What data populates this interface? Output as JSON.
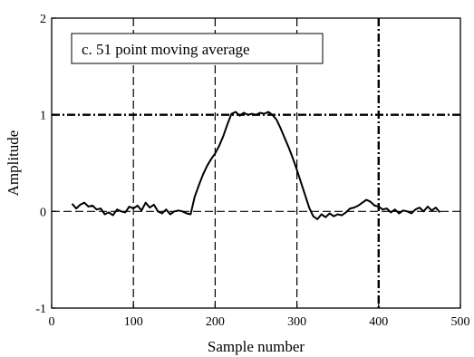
{
  "chart_data": {
    "type": "line",
    "title": "c.  51 point moving average",
    "xlabel": "Sample number",
    "ylabel": "Amplitude",
    "xlim": [
      0,
      500
    ],
    "ylim": [
      -1,
      2
    ],
    "xticks": [
      0,
      100,
      200,
      300,
      400,
      500
    ],
    "yticks": [
      -1,
      0,
      1,
      2
    ],
    "grid": true,
    "series": [
      {
        "name": "",
        "color": "#000000",
        "x": [
          25,
          30,
          35,
          40,
          45,
          50,
          55,
          60,
          65,
          70,
          75,
          80,
          85,
          90,
          95,
          100,
          105,
          110,
          115,
          120,
          125,
          130,
          135,
          140,
          145,
          150,
          155,
          160,
          165,
          170,
          175,
          180,
          185,
          190,
          195,
          200,
          205,
          210,
          215,
          220,
          225,
          230,
          235,
          240,
          245,
          250,
          255,
          260,
          265,
          270,
          275,
          280,
          285,
          290,
          295,
          300,
          305,
          310,
          315,
          320,
          325,
          330,
          335,
          340,
          345,
          350,
          355,
          360,
          365,
          370,
          375,
          380,
          385,
          390,
          395,
          400,
          405,
          410,
          415,
          420,
          425,
          430,
          435,
          440,
          445,
          450,
          455,
          460,
          465,
          470,
          475
        ],
        "y": [
          0.08,
          0.03,
          0.07,
          0.09,
          0.05,
          0.06,
          0.02,
          0.03,
          -0.03,
          -0.01,
          -0.04,
          0.02,
          0.0,
          -0.01,
          0.05,
          0.03,
          0.06,
          0.01,
          0.09,
          0.04,
          0.07,
          0.0,
          -0.02,
          0.02,
          -0.03,
          0.0,
          0.01,
          0.0,
          -0.02,
          -0.03,
          0.15,
          0.27,
          0.38,
          0.47,
          0.54,
          0.6,
          0.68,
          0.78,
          0.9,
          1.01,
          1.03,
          0.99,
          1.02,
          1.0,
          1.01,
          1.0,
          1.02,
          1.01,
          1.03,
          1.0,
          0.95,
          0.86,
          0.76,
          0.66,
          0.55,
          0.43,
          0.3,
          0.17,
          0.04,
          -0.05,
          -0.08,
          -0.03,
          -0.06,
          -0.02,
          -0.05,
          -0.03,
          -0.04,
          -0.01,
          0.03,
          0.04,
          0.06,
          0.09,
          0.12,
          0.1,
          0.06,
          0.05,
          0.02,
          0.03,
          -0.01,
          0.02,
          -0.02,
          0.01,
          0.0,
          -0.02,
          0.02,
          0.04,
          0.0,
          0.05,
          0.01,
          0.04,
          -0.01
        ]
      }
    ]
  }
}
